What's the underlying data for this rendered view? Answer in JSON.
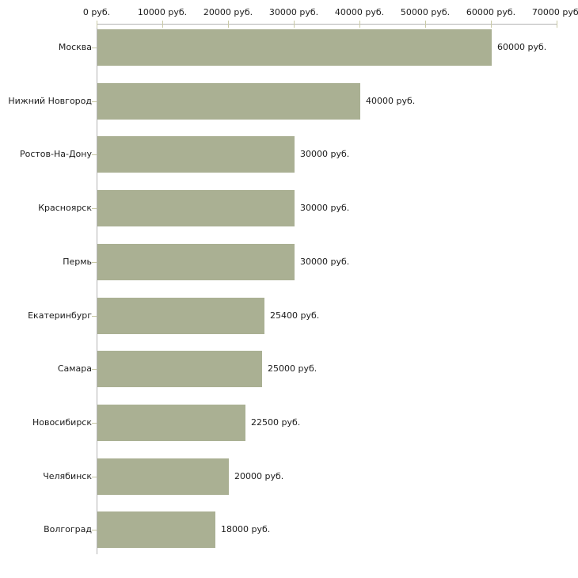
{
  "chart_data": {
    "type": "bar",
    "orientation": "horizontal",
    "title": "",
    "xlabel": "",
    "ylabel": "",
    "categories": [
      "Москва",
      "Нижний Новгород",
      "Ростов-На-Дону",
      "Красноярск",
      "Пермь",
      "Екатеринбург",
      "Самара",
      "Новосибирск",
      "Челябинск",
      "Волгоград"
    ],
    "values": [
      60000,
      40000,
      30000,
      30000,
      30000,
      25400,
      25000,
      22500,
      20000,
      18000
    ],
    "value_labels": [
      "60000 руб.",
      "40000 руб.",
      "30000 руб.",
      "30000 руб.",
      "30000 руб.",
      "25400 руб.",
      "25000 руб.",
      "22500 руб.",
      "20000 руб.",
      "18000 руб."
    ],
    "x_axis": {
      "min": 0,
      "max": 70000,
      "tick_interval": 10000,
      "position": "top",
      "tick_labels": [
        "0 руб.",
        "10000 руб.",
        "20000 руб.",
        "30000 руб.",
        "40000 руб.",
        "50000 руб.",
        "60000 руб.",
        "70000 руб."
      ]
    },
    "grid": false,
    "legend": false,
    "colors": {
      "bar": "#aab093",
      "axis_line": "#b3b3b3",
      "tick": "#c9c9a5",
      "text": "#1c1c1c",
      "background": "#ffffff"
    }
  }
}
